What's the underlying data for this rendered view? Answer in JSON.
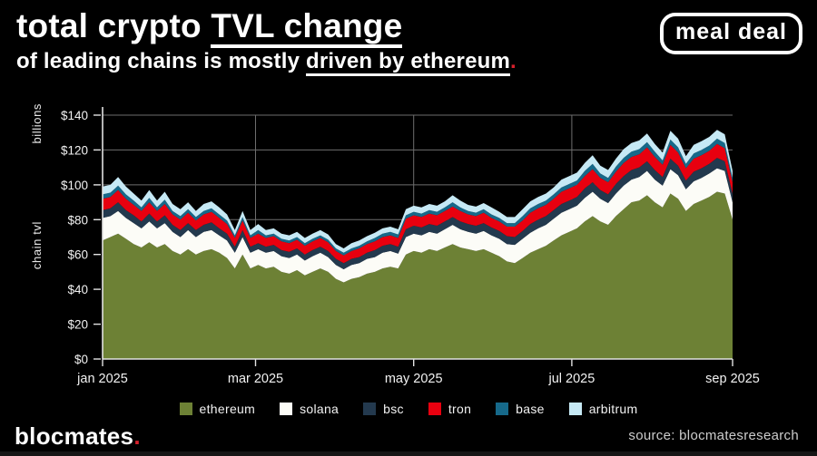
{
  "header": {
    "title_line1_plain": "total crypto ",
    "title_line1_underlined": "TVL change",
    "title_line2_plain": "of leading chains is mostly ",
    "title_line2_underlined": "driven by ethereum",
    "title_period": ".",
    "logo_text": "meal deal"
  },
  "footer": {
    "brand": "blocmates",
    "brand_period": ".",
    "source": "source: blocmatesresearch"
  },
  "accent_red": "#d6202b",
  "chart_data": {
    "type": "area",
    "stacked": true,
    "units": "billions USD (per-chain tvl, each series is its own layer thickness)",
    "grid": true,
    "legend_position": "bottom",
    "ylim": [
      0,
      140
    ],
    "ylabel_top": "billions",
    "ylabel_bottom": "chain tvl",
    "grid_color": "#6e6e6e",
    "axis_color": "#e2e2e2",
    "text_color": "#f2f2f2",
    "x_unit": "days since 1 jan 2025",
    "x_days": [
      0,
      3,
      6,
      9,
      12,
      15,
      18,
      21,
      24,
      27,
      30,
      33,
      36,
      39,
      42,
      45,
      48,
      51,
      54,
      57,
      60,
      63,
      66,
      69,
      72,
      75,
      78,
      81,
      84,
      87,
      90,
      93,
      96,
      99,
      102,
      105,
      108,
      111,
      114,
      117,
      120,
      123,
      126,
      129,
      132,
      135,
      138,
      141,
      144,
      147,
      150,
      153,
      156,
      159,
      162,
      165,
      168,
      171,
      174,
      177,
      180,
      183,
      186,
      189,
      192,
      195,
      198,
      201,
      204,
      207,
      210,
      213,
      216,
      219,
      222,
      225,
      228,
      231,
      234,
      237,
      240,
      243
    ],
    "x_ticks": [
      {
        "label": "jan 2025",
        "day": 0
      },
      {
        "label": "mar 2025",
        "day": 59
      },
      {
        "label": "may 2025",
        "day": 120
      },
      {
        "label": "jul 2025",
        "day": 181
      },
      {
        "label": "sep 2025",
        "day": 243
      }
    ],
    "y_ticks": [
      {
        "label": "$0",
        "value": 0
      },
      {
        "label": "$20",
        "value": 20
      },
      {
        "label": "$40",
        "value": 40
      },
      {
        "label": "$60",
        "value": 60
      },
      {
        "label": "$80",
        "value": 80
      },
      {
        "label": "$100",
        "value": 100
      },
      {
        "label": "$120",
        "value": 120
      },
      {
        "label": "$140",
        "value": 140
      }
    ],
    "series": [
      {
        "name": "ethereum",
        "color": "#6d8135",
        "values": [
          68,
          70,
          72,
          69,
          66,
          64,
          67,
          64,
          66,
          62,
          60,
          63,
          60,
          62,
          63,
          61,
          58,
          52,
          60,
          52,
          54,
          52,
          53,
          50,
          49,
          51,
          48,
          50,
          52,
          50,
          46,
          44,
          46,
          47,
          49,
          50,
          52,
          53,
          52,
          60,
          62,
          61,
          63,
          62,
          64,
          66,
          64,
          63,
          62,
          63,
          61,
          59,
          56,
          55,
          58,
          61,
          63,
          65,
          68,
          71,
          73,
          75,
          79,
          82,
          79,
          77,
          82,
          86,
          90,
          91,
          94,
          90,
          87,
          95,
          92,
          85,
          89,
          91,
          93,
          96,
          95,
          80
        ]
      },
      {
        "name": "solana",
        "color": "#fcfcf7",
        "values": [
          13,
          12,
          13,
          12,
          12,
          11,
          12,
          11,
          12,
          11,
          10,
          11,
          10,
          11,
          11,
          10,
          10,
          9,
          10,
          9,
          9,
          9,
          9,
          9,
          9,
          9,
          8.5,
          9,
          9,
          8.5,
          8,
          7.5,
          8,
          8,
          8.5,
          8.5,
          9,
          9,
          8.5,
          10,
          10,
          10,
          10,
          10,
          10.5,
          11,
          10.5,
          10,
          10,
          10.5,
          10,
          10,
          10,
          10.5,
          11,
          11.5,
          12,
          12,
          12.5,
          13,
          13,
          13,
          13.5,
          14,
          13,
          12.5,
          13,
          13.5,
          13,
          13.5,
          14,
          13,
          12.5,
          14,
          13.5,
          12.5,
          13,
          13,
          13.5,
          13.5,
          13,
          10
        ]
      },
      {
        "name": "bsc",
        "color": "#23394e",
        "values": [
          4.5,
          4.5,
          5,
          4.5,
          4.5,
          4,
          4.5,
          4,
          4.5,
          4,
          4,
          4,
          4,
          4,
          4.5,
          4,
          4,
          3.5,
          4,
          3.5,
          3.5,
          3.5,
          3.5,
          3.5,
          3.5,
          3.5,
          3.5,
          3.5,
          3.5,
          3.5,
          3.5,
          3.5,
          3.5,
          3.5,
          3.5,
          4,
          4,
          4,
          4,
          4.5,
          4.5,
          4.5,
          4.5,
          4.5,
          4.5,
          4.5,
          4.5,
          4.5,
          4.5,
          4.5,
          4.5,
          4.5,
          4.5,
          4.5,
          4.5,
          5,
          5,
          5,
          5,
          5,
          5,
          5,
          5.5,
          5.5,
          5,
          5,
          5.5,
          5.5,
          5.5,
          5.5,
          5.5,
          5.5,
          5,
          6,
          5.5,
          5,
          5.5,
          5.5,
          5.5,
          6,
          5.5,
          5
        ]
      },
      {
        "name": "tron",
        "color": "#e8000f",
        "values": [
          6.5,
          6.5,
          7,
          6.5,
          6,
          6,
          6.5,
          6,
          6.5,
          6,
          6,
          6,
          5.5,
          6,
          6,
          6,
          5.5,
          5,
          5.5,
          5,
          5.5,
          5,
          5,
          5,
          5,
          5,
          5,
          5,
          5,
          5,
          4.5,
          4.5,
          4.5,
          5,
          5,
          5,
          5,
          5,
          5,
          6,
          6,
          6,
          6,
          6,
          6,
          6,
          6,
          5.5,
          5.5,
          6,
          5.5,
          5.5,
          5.5,
          6,
          6,
          6.5,
          6.5,
          6.5,
          6.5,
          7,
          7,
          7,
          7,
          7.5,
          7,
          7,
          7,
          7.5,
          7.5,
          7.5,
          8,
          7.5,
          7,
          8,
          7.5,
          7,
          7.5,
          7.5,
          7.5,
          8,
          7.5,
          6.5
        ]
      },
      {
        "name": "base",
        "color": "#16698a",
        "values": [
          2.5,
          2.5,
          2.5,
          2.5,
          2.5,
          2,
          2.5,
          2,
          2.5,
          2,
          2,
          2,
          2,
          2,
          2,
          2,
          2,
          1.5,
          2,
          1.5,
          2,
          1.5,
          1.5,
          1.5,
          1.5,
          1.5,
          1.5,
          1.5,
          1.5,
          1.5,
          1.5,
          1.5,
          1.5,
          1.5,
          1.5,
          2,
          2,
          2,
          2,
          2,
          2,
          2,
          2,
          2,
          2,
          2.5,
          2,
          2,
          2,
          2,
          2,
          2,
          2,
          2,
          2.5,
          2.5,
          2.5,
          2.5,
          2.5,
          2.5,
          2.5,
          2.5,
          3,
          3,
          2.5,
          2.5,
          3,
          3,
          3,
          3,
          3,
          3,
          2.5,
          3,
          3,
          2.5,
          3,
          3,
          3,
          3,
          3,
          2.5
        ]
      },
      {
        "name": "arbitrum",
        "color": "#c6e9f5",
        "values": [
          4.5,
          4.5,
          5,
          4.5,
          4,
          4,
          4.5,
          4,
          4.5,
          4,
          4,
          4,
          3.5,
          4,
          4,
          4,
          3.5,
          3,
          3.5,
          3,
          3.5,
          3,
          3,
          3,
          3,
          3,
          3,
          3,
          3,
          3,
          2.5,
          2.5,
          3,
          3,
          3,
          3,
          3,
          3,
          3,
          3.5,
          3.5,
          3.5,
          3.5,
          3.5,
          3.5,
          4,
          4,
          3.5,
          3.5,
          3.5,
          4,
          3.5,
          3.5,
          3.5,
          4,
          4,
          4,
          4,
          4,
          4.5,
          4.5,
          4.5,
          4.5,
          5,
          4.5,
          4.5,
          4.5,
          5,
          5,
          5,
          5,
          4.5,
          4.5,
          5,
          5,
          4.5,
          5,
          5,
          5,
          5,
          5,
          4
        ]
      }
    ]
  }
}
